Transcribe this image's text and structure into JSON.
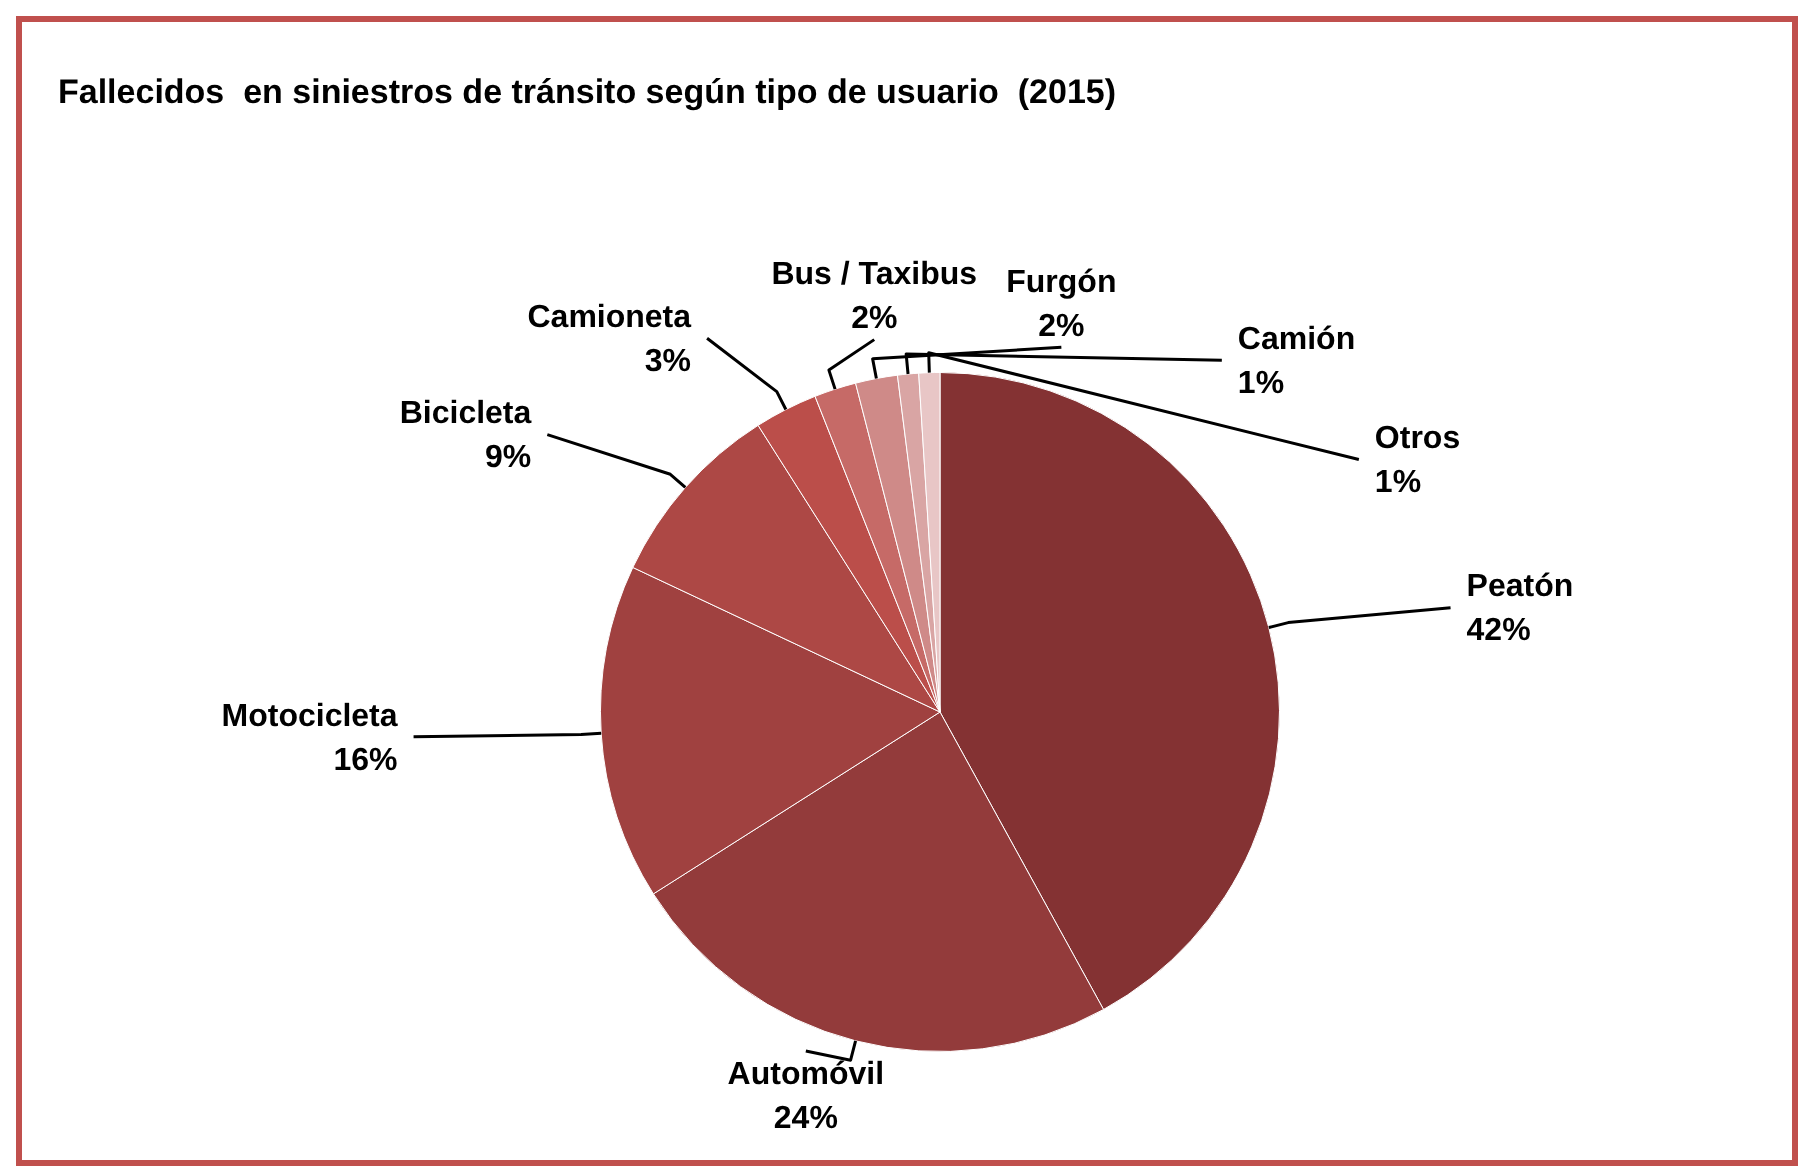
{
  "chart_data": {
    "type": "pie",
    "title": "Fallecidos  en siniestros de tránsito según tipo de usuario  (2015)",
    "categories": [
      "Peatón",
      "Automóvil",
      "Motocicleta",
      "Bicicleta",
      "Camioneta",
      "Bus / Taxibus",
      "Furgón",
      "Camión",
      "Otros"
    ],
    "values": [
      42,
      24,
      16,
      9,
      3,
      2,
      2,
      1,
      1
    ],
    "colors": [
      "#843233",
      "#933b3b",
      "#a04140",
      "#ad4845",
      "#bb4e4a",
      "#c66a67",
      "#cf8a88",
      "#d9a5a4",
      "#e8c6c6"
    ],
    "value_labels": [
      "42%",
      "24%",
      "16%",
      "9%",
      "3%",
      "2%",
      "2%",
      "1%",
      "1%"
    ],
    "legend": false
  }
}
